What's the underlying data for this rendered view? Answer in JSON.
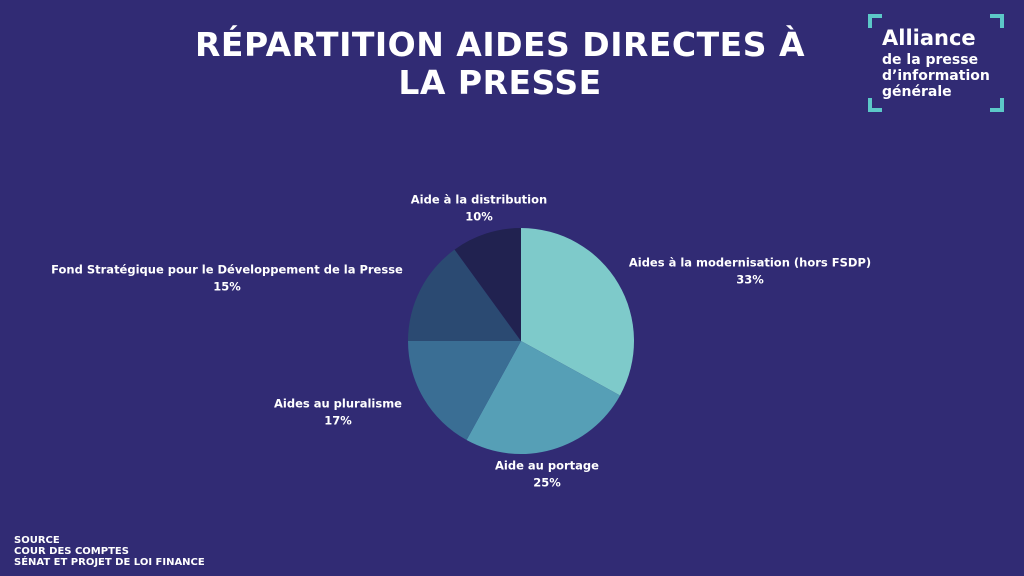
{
  "chart_data": {
    "type": "pie",
    "title": "RÉPARTITION AIDES DIRECTES À LA PRESSE",
    "categories": [
      "Aides à la modernisation (hors FSDP)",
      "Aide au portage",
      "Aides au pluralisme",
      "Fond Stratégique pour le Développement de la Presse",
      "Aide à la distribution"
    ],
    "values": [
      33,
      25,
      17,
      15,
      10
    ],
    "value_labels": [
      "33%",
      "25%",
      "17%",
      "15%",
      "10%"
    ],
    "colors": [
      "#7ecaca",
      "#569fb6",
      "#3a6e94",
      "#2b4a72",
      "#212250"
    ]
  },
  "logo": {
    "lines": [
      "Alliance",
      "de la presse",
      "d’information",
      "générale"
    ]
  },
  "source": [
    "SOURCE",
    "COUR DES COMPTES",
    "SÉNAT ET PROJET DE LOI FINANCE"
  ]
}
